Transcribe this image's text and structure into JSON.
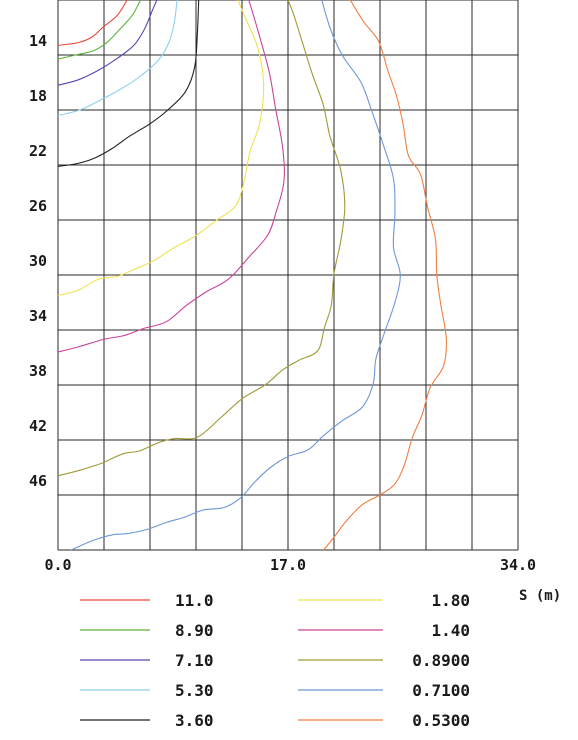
{
  "chart_data": {
    "type": "line",
    "title": "",
    "xlabel": "S (m)",
    "ylabel": "",
    "xlim": [
      0,
      34
    ],
    "ylim": [
      10,
      50
    ],
    "y_inverted": true,
    "x_ticks": [
      "0.0",
      "17.0",
      "34.0"
    ],
    "y_ticks": [
      "14",
      "18",
      "22",
      "26",
      "30",
      "34",
      "38",
      "42",
      "46"
    ],
    "grid": true,
    "legend_position": "bottom",
    "series": [
      {
        "name": "11.0",
        "color": "#e8483a",
        "points": [
          [
            0,
            13.3
          ],
          [
            1.5,
            13.1
          ],
          [
            2.5,
            12.7
          ],
          [
            3.3,
            12.0
          ],
          [
            4.4,
            11.1
          ],
          [
            5.1,
            10.0
          ]
        ]
      },
      {
        "name": "8.90",
        "color": "#5eb53e",
        "points": [
          [
            0,
            14.3
          ],
          [
            1.3,
            14.0
          ],
          [
            2.6,
            13.7
          ],
          [
            3.6,
            13.1
          ],
          [
            4.6,
            12.1
          ],
          [
            5.5,
            11.1
          ],
          [
            6.1,
            10.0
          ]
        ]
      },
      {
        "name": "7.10",
        "color": "#5747b5",
        "points": [
          [
            0,
            16.2
          ],
          [
            1.5,
            15.8
          ],
          [
            3.0,
            15.1
          ],
          [
            4.3,
            14.3
          ],
          [
            5.6,
            13.3
          ],
          [
            6.4,
            12.1
          ],
          [
            7.0,
            10.7
          ],
          [
            7.3,
            10.0
          ]
        ]
      },
      {
        "name": "5.30",
        "color": "#8fd0ee",
        "points": [
          [
            0,
            18.4
          ],
          [
            1.6,
            18.0
          ],
          [
            3.1,
            17.3
          ],
          [
            4.6,
            16.5
          ],
          [
            6.0,
            15.6
          ],
          [
            7.4,
            14.4
          ],
          [
            8.2,
            13.1
          ],
          [
            8.6,
            11.6
          ],
          [
            8.8,
            10.0
          ]
        ]
      },
      {
        "name": "3.60",
        "color": "#222222",
        "points": [
          [
            0,
            22.1
          ],
          [
            1.4,
            21.9
          ],
          [
            2.7,
            21.5
          ],
          [
            4.0,
            20.8
          ],
          [
            5.3,
            19.9
          ],
          [
            6.8,
            19.0
          ],
          [
            8.0,
            18.1
          ],
          [
            9.4,
            16.7
          ],
          [
            10.1,
            14.9
          ],
          [
            10.3,
            12.4
          ],
          [
            10.4,
            10.0
          ]
        ]
      },
      {
        "name": "1.80",
        "color": "#eee256",
        "points": [
          [
            0,
            31.5
          ],
          [
            1.5,
            31.1
          ],
          [
            3.0,
            30.3
          ],
          [
            4.4,
            30.1
          ],
          [
            5.6,
            29.6
          ],
          [
            7.0,
            29.0
          ],
          [
            8.6,
            28.0
          ],
          [
            10.1,
            27.2
          ],
          [
            11.6,
            26.1
          ],
          [
            13.1,
            25.0
          ],
          [
            13.7,
            23.4
          ],
          [
            14.2,
            21.0
          ],
          [
            14.9,
            19.0
          ],
          [
            15.2,
            16.2
          ],
          [
            14.8,
            13.6
          ],
          [
            13.8,
            11.2
          ],
          [
            13.3,
            10.0
          ]
        ]
      },
      {
        "name": "1.40",
        "color": "#c9449a",
        "points": [
          [
            0,
            35.6
          ],
          [
            1.6,
            35.2
          ],
          [
            3.3,
            34.7
          ],
          [
            4.9,
            34.4
          ],
          [
            6.3,
            33.9
          ],
          [
            8.0,
            33.4
          ],
          [
            9.5,
            32.2
          ],
          [
            11.0,
            31.2
          ],
          [
            12.6,
            30.3
          ],
          [
            14.2,
            28.6
          ],
          [
            15.5,
            27.1
          ],
          [
            16.1,
            25.5
          ],
          [
            16.7,
            23.2
          ],
          [
            16.6,
            20.7
          ],
          [
            16.1,
            18.0
          ],
          [
            15.6,
            15.2
          ],
          [
            14.8,
            12.3
          ],
          [
            14.1,
            10.0
          ]
        ]
      },
      {
        "name": "0.8900",
        "color": "#a09a38",
        "points": [
          [
            0,
            44.6
          ],
          [
            1.6,
            44.2
          ],
          [
            3.2,
            43.7
          ],
          [
            4.8,
            43.0
          ],
          [
            6.0,
            42.8
          ],
          [
            7.4,
            42.2
          ],
          [
            8.6,
            41.9
          ],
          [
            10.3,
            41.8
          ],
          [
            12.0,
            40.4
          ],
          [
            13.6,
            39.0
          ],
          [
            15.3,
            38.0
          ],
          [
            16.6,
            36.9
          ],
          [
            17.8,
            36.2
          ],
          [
            19.2,
            35.5
          ],
          [
            19.7,
            33.8
          ],
          [
            20.2,
            32.2
          ],
          [
            20.4,
            29.9
          ],
          [
            20.9,
            27.5
          ],
          [
            21.2,
            25.0
          ],
          [
            20.9,
            22.4
          ],
          [
            20.1,
            19.9
          ],
          [
            19.6,
            17.6
          ],
          [
            18.8,
            15.4
          ],
          [
            18.1,
            13.2
          ],
          [
            17.4,
            11.0
          ],
          [
            17.0,
            10.0
          ]
        ]
      },
      {
        "name": "0.7100",
        "color": "#6e97d8",
        "points": [
          [
            0,
            50.5
          ],
          [
            1.2,
            49.9
          ],
          [
            2.6,
            49.3
          ],
          [
            4.0,
            48.9
          ],
          [
            5.2,
            48.8
          ],
          [
            6.6,
            48.5
          ],
          [
            8.0,
            48.0
          ],
          [
            9.4,
            47.6
          ],
          [
            10.7,
            47.1
          ],
          [
            12.3,
            46.9
          ],
          [
            13.5,
            46.2
          ],
          [
            14.6,
            45.0
          ],
          [
            15.7,
            44.0
          ],
          [
            17.0,
            43.2
          ],
          [
            18.5,
            42.7
          ],
          [
            19.6,
            41.7
          ],
          [
            21.0,
            40.6
          ],
          [
            22.5,
            39.6
          ],
          [
            23.3,
            37.9
          ],
          [
            23.5,
            36.1
          ],
          [
            24.2,
            34.0
          ],
          [
            24.9,
            32.0
          ],
          [
            25.3,
            30.0
          ],
          [
            24.8,
            28.0
          ],
          [
            24.9,
            25.5
          ],
          [
            24.8,
            23.0
          ],
          [
            24.0,
            20.4
          ],
          [
            23.2,
            18.1
          ],
          [
            22.4,
            16.0
          ],
          [
            21.0,
            14.0
          ],
          [
            20.1,
            12.0
          ],
          [
            19.5,
            10.0
          ]
        ]
      },
      {
        "name": "0.5300",
        "color": "#f07e42",
        "points": [
          [
            19.2,
            50.5
          ],
          [
            20.3,
            49.2
          ],
          [
            21.3,
            47.9
          ],
          [
            22.5,
            46.7
          ],
          [
            23.8,
            46.0
          ],
          [
            24.9,
            45.2
          ],
          [
            25.6,
            43.8
          ],
          [
            26.2,
            41.8
          ],
          [
            26.9,
            40.2
          ],
          [
            27.5,
            38.2
          ],
          [
            28.5,
            36.6
          ],
          [
            28.7,
            34.6
          ],
          [
            28.3,
            32.2
          ],
          [
            28.0,
            30.0
          ],
          [
            27.9,
            27.4
          ],
          [
            27.3,
            25.0
          ],
          [
            26.8,
            22.7
          ],
          [
            25.9,
            21.3
          ],
          [
            25.5,
            19.0
          ],
          [
            25.0,
            16.9
          ],
          [
            24.4,
            15.2
          ],
          [
            23.7,
            13.0
          ],
          [
            22.6,
            11.6
          ],
          [
            21.6,
            10.0
          ]
        ]
      }
    ]
  }
}
